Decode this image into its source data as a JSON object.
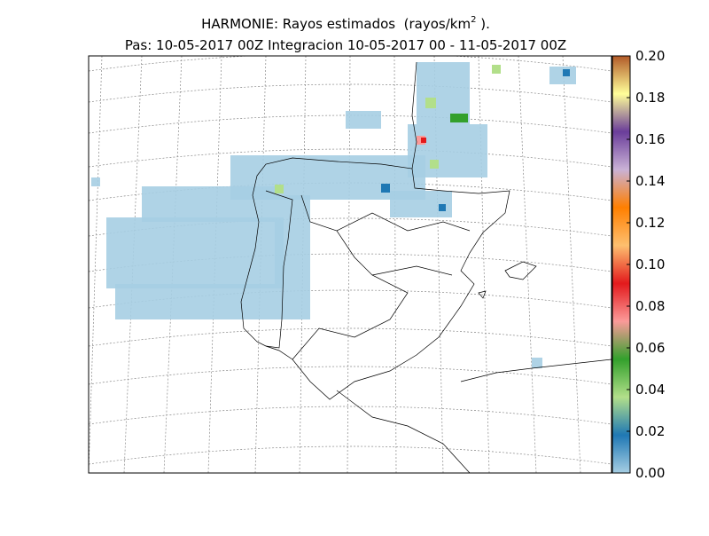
{
  "header": {
    "title": "HARMONIE: Rayos estimados  (rayos/km",
    "title_superscript": "2",
    "title_end": " ).",
    "subtitle": "Pas: 10-05-2017 00Z Integracion 10-05-2017 00 - 11-05-2017 00Z"
  },
  "colorbar": {
    "lim": [
      0,
      0.2
    ],
    "colors": [
      "#a6cee3",
      "#1f78b4",
      "#b2df8a",
      "#33a02c",
      "#fb9a99",
      "#e31a1c",
      "#fdbf6f",
      "#ff7f00",
      "#cab2d6",
      "#6a3d9a",
      "#ffff99",
      "#b15928"
    ],
    "ticks": [
      {
        "value": 0,
        "label": "0.00"
      },
      {
        "value": 0.02,
        "label": "0.02"
      },
      {
        "value": 0.04,
        "label": "0.04"
      },
      {
        "value": 0.06,
        "label": "0.06"
      },
      {
        "value": 0.08,
        "label": "0.08"
      },
      {
        "value": 0.1,
        "label": "0.10"
      },
      {
        "value": 0.12,
        "label": "0.12"
      },
      {
        "value": 0.14,
        "label": "0.14"
      },
      {
        "value": 0.16,
        "label": "0.16"
      },
      {
        "value": 0.18,
        "label": "0.18"
      },
      {
        "value": 0.2,
        "label": "0.20"
      }
    ]
  }
}
